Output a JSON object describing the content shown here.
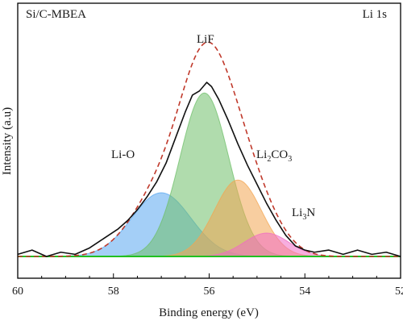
{
  "chart_data": {
    "type": "area",
    "sample_label": "Si/C-MBEA",
    "region_label": "Li 1s",
    "xlabel": "Binding energy (eV)",
    "ylabel": "Intensity (a.u)",
    "xlim": [
      60,
      52
    ],
    "x_ticks": [
      60,
      58,
      56,
      54,
      52
    ],
    "x_reversed": true,
    "ylim": [
      0,
      1.0
    ],
    "y_ticks_shown": false,
    "baseline": 0.02,
    "components": [
      {
        "label": "Li-O",
        "label_main": "Li-O",
        "label_sub": "",
        "label_tail": "",
        "center": 57.0,
        "height": 0.3,
        "fwhm": 1.45,
        "color": "#5aa8f0"
      },
      {
        "label": "LiF",
        "label_main": "LiF",
        "label_sub": "",
        "label_tail": "",
        "center": 56.1,
        "height": 0.77,
        "fwhm": 1.2,
        "color": "#6fbf6a"
      },
      {
        "label": "Li2CO3",
        "label_main": "Li",
        "label_sub": "2",
        "label_tail": "CO",
        "label_sub2": "3",
        "center": 55.4,
        "height": 0.36,
        "fwhm": 1.15,
        "color": "#f3a552"
      },
      {
        "label": "Li3N",
        "label_main": "Li",
        "label_sub": "3",
        "label_tail": "N",
        "center": 54.8,
        "height": 0.11,
        "fwhm": 1.1,
        "color": "#f06bc4"
      }
    ],
    "raw_curve": {
      "color": "#111111",
      "points": [
        [
          60.0,
          0.03
        ],
        [
          59.7,
          0.05
        ],
        [
          59.4,
          0.02
        ],
        [
          59.1,
          0.04
        ],
        [
          58.8,
          0.03
        ],
        [
          58.5,
          0.06
        ],
        [
          58.3,
          0.09
        ],
        [
          58.1,
          0.12
        ],
        [
          57.9,
          0.15
        ],
        [
          57.7,
          0.19
        ],
        [
          57.5,
          0.24
        ],
        [
          57.3,
          0.3
        ],
        [
          57.1,
          0.37
        ],
        [
          56.9,
          0.46
        ],
        [
          56.7,
          0.58
        ],
        [
          56.5,
          0.7
        ],
        [
          56.35,
          0.78
        ],
        [
          56.2,
          0.8
        ],
        [
          56.05,
          0.84
        ],
        [
          55.95,
          0.82
        ],
        [
          55.8,
          0.76
        ],
        [
          55.6,
          0.66
        ],
        [
          55.4,
          0.55
        ],
        [
          55.2,
          0.45
        ],
        [
          55.0,
          0.36
        ],
        [
          54.8,
          0.27
        ],
        [
          54.6,
          0.19
        ],
        [
          54.4,
          0.12
        ],
        [
          54.2,
          0.07
        ],
        [
          54.0,
          0.05
        ],
        [
          53.8,
          0.04
        ],
        [
          53.5,
          0.05
        ],
        [
          53.2,
          0.03
        ],
        [
          52.9,
          0.05
        ],
        [
          52.6,
          0.03
        ],
        [
          52.3,
          0.04
        ],
        [
          52.0,
          0.02
        ]
      ]
    },
    "fit_envelope": {
      "color": "#c0392b",
      "style": "dashed"
    },
    "background_line": {
      "color": "#21c021"
    }
  }
}
